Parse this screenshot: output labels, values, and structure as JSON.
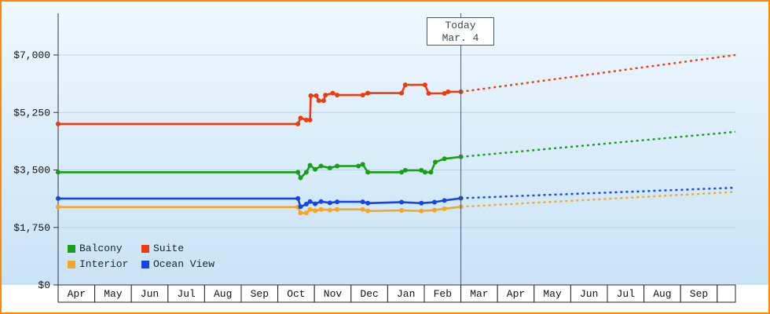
{
  "today": {
    "line1": "Today",
    "line2": "Mar. 4"
  },
  "legend": {
    "items": [
      {
        "label": "Balcony",
        "color": "#15a015"
      },
      {
        "label": "Suite",
        "color": "#ee3b0e"
      },
      {
        "label": "Interior",
        "color": "#f5a623"
      },
      {
        "label": "Ocean View",
        "color": "#1345e8"
      }
    ]
  },
  "chart_data": {
    "type": "line",
    "title": "",
    "xlabel": "",
    "ylabel": "",
    "grid": true,
    "legend_position": "bottom-left",
    "x_unit": "months since first April (fraction = day within month)",
    "today_x": 11,
    "ylim": [
      0,
      7900
    ],
    "y_ticks": [
      {
        "value": 0,
        "label": "$0"
      },
      {
        "value": 1750,
        "label": "$1,750"
      },
      {
        "value": 3500,
        "label": "$3,500"
      },
      {
        "value": 5250,
        "label": "$5,250"
      },
      {
        "value": 7000,
        "label": "$7,000"
      }
    ],
    "x_months": [
      "Apr",
      "May",
      "Jun",
      "Jul",
      "Aug",
      "Sep",
      "Oct",
      "Nov",
      "Dec",
      "Jan",
      "Feb",
      "Mar",
      "Apr",
      "May",
      "Jun",
      "Jul",
      "Aug",
      "Sep"
    ],
    "series": [
      {
        "name": "Interior",
        "color": "#f5a623",
        "history": [
          [
            0,
            2370
          ],
          [
            6.55,
            2370
          ],
          [
            6.62,
            2190
          ],
          [
            6.78,
            2190
          ],
          [
            6.88,
            2300
          ],
          [
            7.02,
            2260
          ],
          [
            7.18,
            2300
          ],
          [
            7.42,
            2280
          ],
          [
            7.62,
            2300
          ],
          [
            8.32,
            2300
          ],
          [
            8.46,
            2250
          ],
          [
            9.38,
            2270
          ],
          [
            9.92,
            2250
          ],
          [
            10.28,
            2280
          ],
          [
            10.55,
            2320
          ],
          [
            11,
            2380
          ]
        ],
        "forecast": [
          [
            11,
            2380
          ],
          [
            18.5,
            2830
          ]
        ]
      },
      {
        "name": "Ocean View",
        "color": "#1345e8",
        "history": [
          [
            0,
            2630
          ],
          [
            6.55,
            2630
          ],
          [
            6.62,
            2380
          ],
          [
            6.78,
            2460
          ],
          [
            6.88,
            2540
          ],
          [
            7.02,
            2470
          ],
          [
            7.18,
            2540
          ],
          [
            7.42,
            2500
          ],
          [
            7.62,
            2530
          ],
          [
            8.32,
            2530
          ],
          [
            8.46,
            2490
          ],
          [
            9.38,
            2520
          ],
          [
            9.92,
            2490
          ],
          [
            10.28,
            2520
          ],
          [
            10.55,
            2570
          ],
          [
            11,
            2640
          ]
        ],
        "forecast": [
          [
            11,
            2640
          ],
          [
            18.5,
            2960
          ]
        ]
      },
      {
        "name": "Balcony",
        "color": "#15a015",
        "history": [
          [
            0,
            3430
          ],
          [
            6.55,
            3430
          ],
          [
            6.62,
            3260
          ],
          [
            6.78,
            3430
          ],
          [
            6.88,
            3640
          ],
          [
            7.02,
            3520
          ],
          [
            7.18,
            3620
          ],
          [
            7.42,
            3560
          ],
          [
            7.62,
            3620
          ],
          [
            8.2,
            3620
          ],
          [
            8.32,
            3670
          ],
          [
            8.46,
            3430
          ],
          [
            9.38,
            3430
          ],
          [
            9.48,
            3490
          ],
          [
            9.92,
            3490
          ],
          [
            10.02,
            3430
          ],
          [
            10.18,
            3430
          ],
          [
            10.3,
            3740
          ],
          [
            10.55,
            3840
          ],
          [
            11,
            3900
          ]
        ],
        "forecast": [
          [
            11,
            3900
          ],
          [
            18.5,
            4660
          ]
        ]
      },
      {
        "name": "Suite",
        "color": "#ee3b0e",
        "history": [
          [
            0,
            4900
          ],
          [
            6.55,
            4900
          ],
          [
            6.62,
            5080
          ],
          [
            6.78,
            5020
          ],
          [
            6.88,
            5020
          ],
          [
            6.9,
            5760
          ],
          [
            7.05,
            5760
          ],
          [
            7.12,
            5610
          ],
          [
            7.25,
            5610
          ],
          [
            7.3,
            5780
          ],
          [
            7.5,
            5840
          ],
          [
            7.62,
            5780
          ],
          [
            8.32,
            5780
          ],
          [
            8.46,
            5840
          ],
          [
            9.38,
            5840
          ],
          [
            9.48,
            6090
          ],
          [
            10.02,
            6090
          ],
          [
            10.12,
            5830
          ],
          [
            10.55,
            5830
          ],
          [
            10.65,
            5880
          ],
          [
            11,
            5880
          ]
        ],
        "forecast": [
          [
            11,
            5880
          ],
          [
            18.5,
            7000
          ]
        ]
      }
    ]
  }
}
